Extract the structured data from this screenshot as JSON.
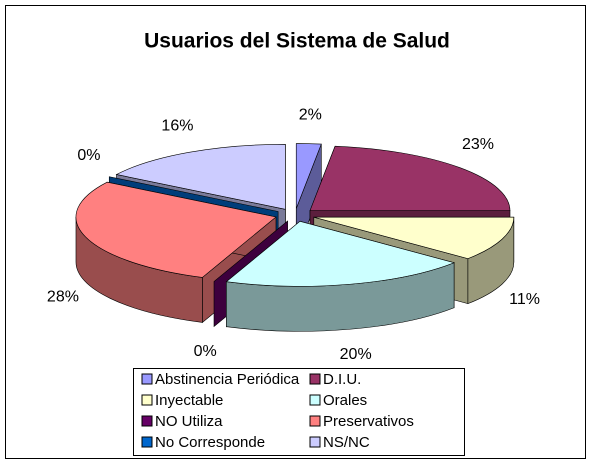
{
  "chart_data": {
    "type": "pie",
    "title": "Usuarios del Sistema de Salud",
    "categories": [
      "Abstinencia Periódica",
      "D.I.U.",
      "Inyectable",
      "Orales",
      "NO Utiliza",
      "Preservativos",
      "No Corresponde",
      "NS/NC"
    ],
    "values": [
      2,
      23,
      11,
      20,
      0,
      28,
      0,
      16
    ],
    "value_labels": [
      "2%",
      "23%",
      "11%",
      "20%",
      "0%",
      "28%",
      "0%",
      "16%"
    ],
    "colors": [
      "#9999ff",
      "#993366",
      "#ffffcc",
      "#ccffff",
      "#660066",
      "#ff8080",
      "#0066cc",
      "#ccccff"
    ],
    "legend": "bottom"
  }
}
